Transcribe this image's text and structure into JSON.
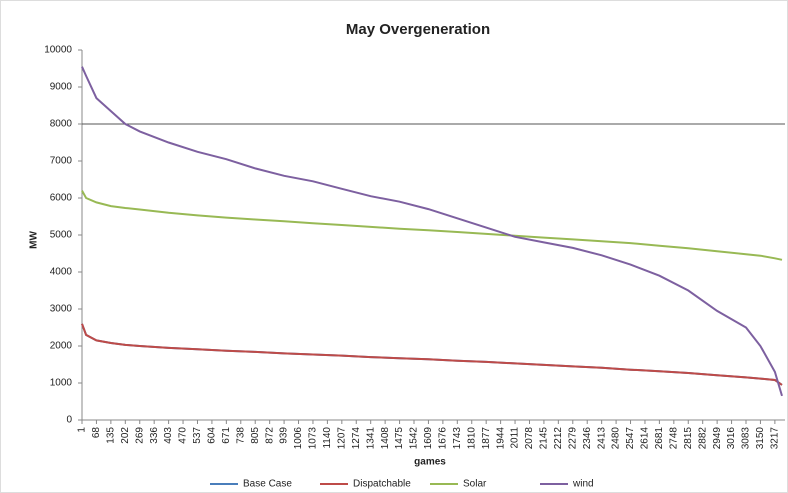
{
  "chart_data": {
    "type": "line",
    "title": "May Overgeneration",
    "x_label": "games",
    "y_label": "MW",
    "x": [
      1,
      20,
      68,
      135,
      202,
      269,
      403,
      537,
      671,
      805,
      939,
      1073,
      1207,
      1341,
      1475,
      1609,
      1743,
      1877,
      2011,
      2145,
      2279,
      2413,
      2547,
      2681,
      2815,
      2949,
      3083,
      3150,
      3217,
      3250
    ],
    "series": [
      {
        "name": "Base Case",
        "color": "#4a7ebb",
        "values": [
          2600,
          2300,
          2150,
          2080,
          2030,
          2000,
          1950,
          1910,
          1870,
          1840,
          1800,
          1770,
          1740,
          1700,
          1670,
          1640,
          1600,
          1570,
          1530,
          1490,
          1450,
          1410,
          1360,
          1320,
          1270,
          1210,
          1150,
          1120,
          1080,
          950
        ]
      },
      {
        "name": "Dispatchable",
        "color": "#be4b48",
        "values": [
          2600,
          2300,
          2150,
          2080,
          2030,
          2000,
          1950,
          1910,
          1870,
          1840,
          1800,
          1770,
          1740,
          1700,
          1670,
          1640,
          1600,
          1570,
          1530,
          1490,
          1450,
          1410,
          1360,
          1320,
          1270,
          1210,
          1150,
          1120,
          1080,
          950
        ]
      },
      {
        "name": "Solar",
        "color": "#98b954",
        "values": [
          6200,
          6000,
          5880,
          5780,
          5730,
          5690,
          5600,
          5530,
          5470,
          5420,
          5370,
          5320,
          5270,
          5220,
          5170,
          5130,
          5080,
          5030,
          4980,
          4930,
          4880,
          4830,
          4780,
          4710,
          4640,
          4560,
          4480,
          4440,
          4370,
          4330
        ]
      },
      {
        "name": "wind",
        "color": "#7d60a0",
        "values": [
          9550,
          9300,
          8700,
          8350,
          8000,
          7800,
          7500,
          7250,
          7050,
          6800,
          6600,
          6450,
          6250,
          6050,
          5900,
          5700,
          5450,
          5200,
          4950,
          4800,
          4650,
          4450,
          4200,
          3900,
          3500,
          2950,
          2500,
          2000,
          1300,
          650
        ]
      }
    ],
    "xlim": [
      1,
      3264
    ],
    "xticks": [
      1,
      68,
      135,
      202,
      269,
      336,
      403,
      470,
      537,
      604,
      671,
      738,
      805,
      872,
      939,
      1006,
      1073,
      1140,
      1207,
      1274,
      1341,
      1408,
      1475,
      1542,
      1609,
      1676,
      1743,
      1810,
      1877,
      1944,
      2011,
      2078,
      2145,
      2212,
      2279,
      2346,
      2413,
      2480,
      2547,
      2614,
      2681,
      2748,
      2815,
      2882,
      2949,
      3016,
      3083,
      3150,
      3217
    ],
    "ylim": [
      0,
      10000
    ],
    "yticks": [
      0,
      1000,
      2000,
      3000,
      4000,
      5000,
      6000,
      7000,
      8000,
      9000,
      10000
    ],
    "reference_line": 8000,
    "grid": false,
    "legend": "bottom"
  }
}
